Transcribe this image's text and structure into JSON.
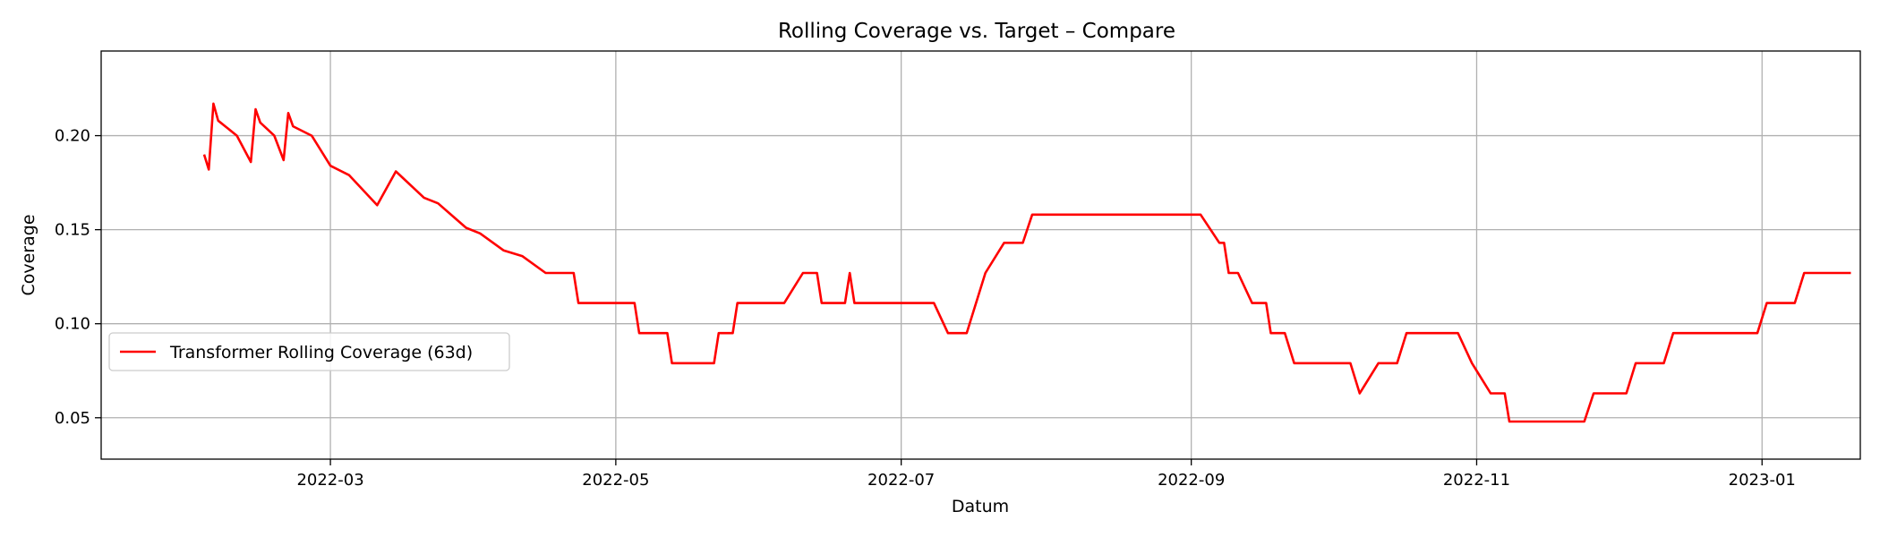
{
  "chart_data": {
    "type": "line",
    "title": "Rolling Coverage vs. Target – Compare",
    "xlabel": "Datum",
    "ylabel": "Coverage",
    "x_range": [
      "2022-01-11",
      "2023-01-22"
    ],
    "ylim": [
      0.028,
      0.245
    ],
    "x_ticks": [
      {
        "date": "2022-03-01",
        "label": "2022-03"
      },
      {
        "date": "2022-05-01",
        "label": "2022-05"
      },
      {
        "date": "2022-07-01",
        "label": "2022-07"
      },
      {
        "date": "2022-09-01",
        "label": "2022-09"
      },
      {
        "date": "2022-11-01",
        "label": "2022-11"
      },
      {
        "date": "2023-01-01",
        "label": "2023-01"
      }
    ],
    "y_ticks": [
      {
        "value": 0.05,
        "label": "0.05"
      },
      {
        "value": 0.1,
        "label": "0.10"
      },
      {
        "value": 0.15,
        "label": "0.15"
      },
      {
        "value": 0.2,
        "label": "0.20"
      }
    ],
    "grid": true,
    "legend_position": "lower-left",
    "colors": {
      "transformer": "#ff0000",
      "garch": "#008000",
      "lstm": "#ffa500",
      "target": "#ff0000"
    },
    "series": [
      {
        "name": "Transformer Rolling Coverage (63d)",
        "style": "solid",
        "color": "#ff0000",
        "points": [
          [
            "2022-02-02",
            0.19
          ],
          [
            "2022-02-03",
            0.182
          ],
          [
            "2022-02-04",
            0.217
          ],
          [
            "2022-02-05",
            0.208
          ],
          [
            "2022-02-09",
            0.2
          ],
          [
            "2022-02-12",
            0.186
          ],
          [
            "2022-02-13",
            0.214
          ],
          [
            "2022-02-14",
            0.207
          ],
          [
            "2022-02-17",
            0.2
          ],
          [
            "2022-02-19",
            0.187
          ],
          [
            "2022-02-20",
            0.212
          ],
          [
            "2022-02-21",
            0.205
          ],
          [
            "2022-02-25",
            0.2
          ],
          [
            "2022-03-01",
            0.184
          ],
          [
            "2022-03-05",
            0.179
          ],
          [
            "2022-03-11",
            0.163
          ],
          [
            "2022-03-15",
            0.181
          ],
          [
            "2022-03-21",
            0.167
          ],
          [
            "2022-03-24",
            0.164
          ],
          [
            "2022-03-30",
            0.151
          ],
          [
            "2022-04-02",
            0.148
          ],
          [
            "2022-04-07",
            0.139
          ],
          [
            "2022-04-11",
            0.136
          ],
          [
            "2022-04-16",
            0.127
          ],
          [
            "2022-04-22",
            0.127
          ],
          [
            "2022-04-23",
            0.111
          ],
          [
            "2022-05-05",
            0.111
          ],
          [
            "2022-05-06",
            0.095
          ],
          [
            "2022-05-12",
            0.095
          ],
          [
            "2022-05-13",
            0.079
          ],
          [
            "2022-05-22",
            0.079
          ],
          [
            "2022-05-23",
            0.095
          ],
          [
            "2022-05-26",
            0.095
          ],
          [
            "2022-05-27",
            0.111
          ],
          [
            "2022-06-06",
            0.111
          ],
          [
            "2022-06-10",
            0.127
          ],
          [
            "2022-06-13",
            0.127
          ],
          [
            "2022-06-14",
            0.111
          ],
          [
            "2022-06-19",
            0.111
          ],
          [
            "2022-06-20",
            0.127
          ],
          [
            "2022-06-21",
            0.111
          ],
          [
            "2022-07-08",
            0.111
          ],
          [
            "2022-07-11",
            0.095
          ],
          [
            "2022-07-15",
            0.095
          ],
          [
            "2022-07-19",
            0.127
          ],
          [
            "2022-07-23",
            0.143
          ],
          [
            "2022-07-27",
            0.143
          ],
          [
            "2022-07-29",
            0.158
          ],
          [
            "2022-09-03",
            0.158
          ],
          [
            "2022-09-07",
            0.143
          ],
          [
            "2022-09-08",
            0.143
          ],
          [
            "2022-09-09",
            0.127
          ],
          [
            "2022-09-11",
            0.127
          ],
          [
            "2022-09-14",
            0.111
          ],
          [
            "2022-09-17",
            0.111
          ],
          [
            "2022-09-18",
            0.095
          ],
          [
            "2022-09-21",
            0.095
          ],
          [
            "2022-09-23",
            0.079
          ],
          [
            "2022-10-05",
            0.079
          ],
          [
            "2022-10-07",
            0.063
          ],
          [
            "2022-10-11",
            0.079
          ],
          [
            "2022-10-15",
            0.079
          ],
          [
            "2022-10-17",
            0.095
          ],
          [
            "2022-10-27",
            0.095
          ],
          [
            "2022-10-28",
            0.095
          ],
          [
            "2022-10-31",
            0.079
          ],
          [
            "2022-11-04",
            0.063
          ],
          [
            "2022-11-07",
            0.063
          ],
          [
            "2022-11-08",
            0.048
          ],
          [
            "2022-11-24",
            0.048
          ],
          [
            "2022-11-26",
            0.063
          ],
          [
            "2022-12-03",
            0.063
          ],
          [
            "2022-12-05",
            0.079
          ],
          [
            "2022-12-11",
            0.079
          ],
          [
            "2022-12-13",
            0.095
          ],
          [
            "2022-12-31",
            0.095
          ],
          [
            "2023-01-02",
            0.111
          ],
          [
            "2023-01-08",
            0.111
          ],
          [
            "2023-01-10",
            0.127
          ],
          [
            "2023-01-20",
            0.127
          ]
        ]
      }
    ]
  }
}
